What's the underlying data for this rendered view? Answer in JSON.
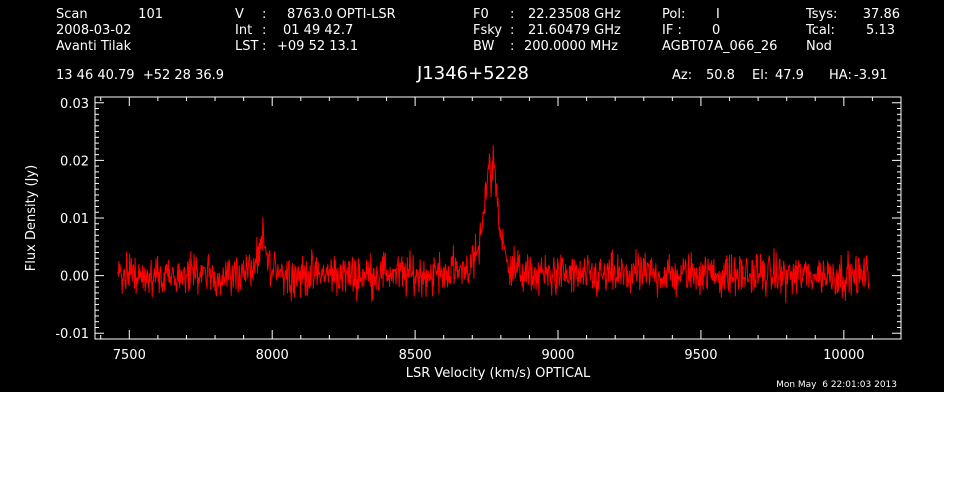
{
  "header": {
    "scan_label": "Scan",
    "scan_value": "101",
    "date": "2008-03-02",
    "observer": "Avanti Tilak",
    "v_label": "V",
    "v_value": "8763.0 OPTI-LSR",
    "int_label": "Int",
    "int_value": "01 49 42.7",
    "lst_label": "LST",
    "lst_value": "+09 52 13.1",
    "f0_label": "F0",
    "f0_value": "22.23508 GHz",
    "fsky_label": "Fsky",
    "fsky_value": "21.60479 GHz",
    "bw_label": "BW",
    "bw_value": "200.0000 MHz",
    "pol_label": "Pol:",
    "pol_value": "I",
    "if_label": "IF :",
    "if_value": "0",
    "project": "AGBT07A_066_26",
    "tsys_label": "Tsys:",
    "tsys_value": "37.86",
    "tcal_label": "Tcal:",
    "tcal_value": "5.13",
    "mode": "Nod",
    "coords": "13 46 40.79  +52 28 36.9",
    "source": "J1346+5228",
    "az_label": "Az:",
    "az_value": "50.8",
    "el_label": "El:",
    "el_value": "47.9",
    "ha_label": "HA:",
    "ha_value": "-3.91"
  },
  "footer": {
    "timestamp": "Mon May  6 22:01:03 2013"
  },
  "colors": {
    "background": "#000000",
    "axes": "#ffffff",
    "trace": "#ff0000"
  },
  "chart_data": {
    "type": "line",
    "title": "J1346+5228",
    "xlabel": "LSR Velocity (km/s) OPTICAL",
    "ylabel": "Flux Density (Jy)",
    "xlim": [
      7380,
      10200
    ],
    "ylim": [
      -0.011,
      0.031
    ],
    "xticks": [
      7500,
      8000,
      8500,
      9000,
      9500,
      10000
    ],
    "xtick_labels": [
      "7500",
      "8000",
      "8500",
      "9000",
      "9500",
      "10000"
    ],
    "yticks": [
      -0.01,
      0.0,
      0.01,
      0.02,
      0.03
    ],
    "ytick_labels": [
      "-0.01",
      "0.00",
      "0.01",
      "0.02",
      "0.03"
    ],
    "grid": false,
    "series": [
      {
        "color": "#ff0000",
        "x": [
          7460,
          7500,
          7550,
          7600,
          7650,
          7700,
          7750,
          7800,
          7850,
          7900,
          7930,
          7950,
          7960,
          7970,
          7980,
          7990,
          8000,
          8020,
          8040,
          8100,
          8200,
          8300,
          8400,
          8500,
          8600,
          8650,
          8700,
          8720,
          8740,
          8750,
          8760,
          8765,
          8770,
          8775,
          8780,
          8790,
          8800,
          8820,
          8850,
          8900,
          9000,
          9100,
          9200,
          9300,
          9400,
          9500,
          9600,
          9700,
          9800,
          9900,
          10000,
          10090
        ],
        "y": [
          0.0,
          0.0005,
          0.0,
          -0.0005,
          0.0003,
          0.0,
          0.0004,
          -0.0003,
          0.0,
          0.0008,
          0.001,
          0.002,
          0.004,
          0.0075,
          0.003,
          0.0015,
          0.0,
          0.002,
          0.0005,
          0.0,
          0.0003,
          0.0,
          0.0006,
          0.0,
          0.0005,
          0.001,
          0.002,
          0.004,
          0.01,
          0.016,
          0.0215,
          0.016,
          0.0175,
          0.021,
          0.018,
          0.012,
          0.006,
          0.003,
          0.001,
          0.0,
          0.0003,
          -0.0003,
          0.0,
          0.0004,
          0.0,
          0.0005,
          0.0,
          0.0003,
          0.0,
          0.0002,
          0.0,
          0.0
        ]
      }
    ]
  }
}
